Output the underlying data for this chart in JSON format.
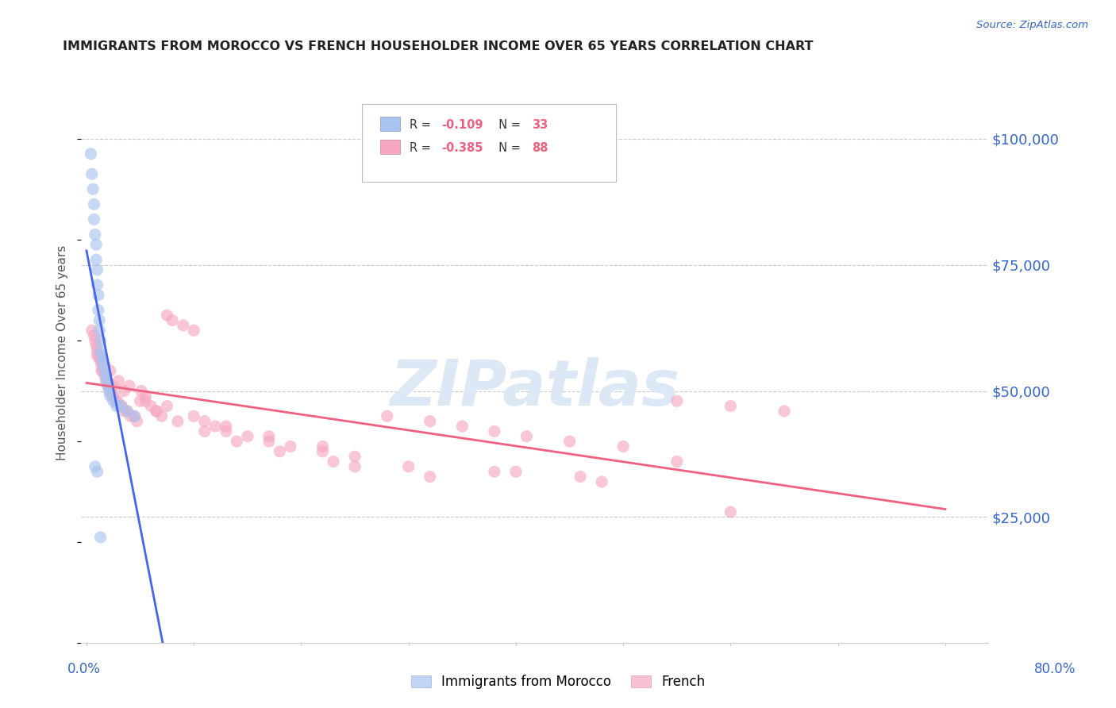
{
  "title": "IMMIGRANTS FROM MOROCCO VS FRENCH HOUSEHOLDER INCOME OVER 65 YEARS CORRELATION CHART",
  "source": "Source: ZipAtlas.com",
  "ylabel": "Householder Income Over 65 years",
  "ytick_values": [
    25000,
    50000,
    75000,
    100000
  ],
  "ylim": [
    0,
    115000
  ],
  "xlim": [
    -0.005,
    0.84
  ],
  "legend_blue_r": "-0.109",
  "legend_blue_n": "33",
  "legend_pink_r": "-0.385",
  "legend_pink_n": "88",
  "blue_color": "#aac4f0",
  "pink_color": "#f7a8c0",
  "line_blue": "#4466ee",
  "line_pink": "#f06080",
  "title_color": "#222222",
  "axis_label_color": "#3366cc",
  "grid_color": "#cccccc",
  "watermark_color": "#dce8f5",
  "blue_scatter_x": [
    0.004,
    0.005,
    0.006,
    0.007,
    0.007,
    0.008,
    0.009,
    0.009,
    0.01,
    0.01,
    0.011,
    0.011,
    0.012,
    0.012,
    0.013,
    0.013,
    0.014,
    0.015,
    0.016,
    0.017,
    0.018,
    0.019,
    0.02,
    0.021,
    0.022,
    0.025,
    0.028,
    0.032,
    0.038,
    0.045,
    0.008,
    0.01,
    0.013
  ],
  "blue_scatter_y": [
    97000,
    93000,
    90000,
    87000,
    84000,
    81000,
    79000,
    76000,
    74000,
    71000,
    69000,
    66000,
    64000,
    62000,
    60000,
    58000,
    57000,
    56000,
    55000,
    54000,
    53000,
    52000,
    51000,
    50000,
    49000,
    48000,
    47000,
    47000,
    46000,
    45000,
    35000,
    34000,
    21000
  ],
  "pink_scatter_x": [
    0.005,
    0.007,
    0.008,
    0.009,
    0.01,
    0.011,
    0.012,
    0.013,
    0.014,
    0.015,
    0.016,
    0.017,
    0.018,
    0.019,
    0.02,
    0.021,
    0.022,
    0.023,
    0.024,
    0.025,
    0.027,
    0.029,
    0.031,
    0.033,
    0.035,
    0.038,
    0.041,
    0.044,
    0.047,
    0.051,
    0.055,
    0.06,
    0.065,
    0.07,
    0.075,
    0.08,
    0.09,
    0.1,
    0.11,
    0.12,
    0.13,
    0.15,
    0.17,
    0.19,
    0.22,
    0.25,
    0.28,
    0.32,
    0.35,
    0.38,
    0.41,
    0.45,
    0.5,
    0.55,
    0.6,
    0.65,
    0.014,
    0.018,
    0.025,
    0.035,
    0.05,
    0.065,
    0.085,
    0.11,
    0.14,
    0.18,
    0.23,
    0.3,
    0.38,
    0.46,
    0.01,
    0.013,
    0.017,
    0.022,
    0.03,
    0.04,
    0.055,
    0.075,
    0.1,
    0.13,
    0.17,
    0.22,
    0.55,
    0.25,
    0.4,
    0.32,
    0.48,
    0.6
  ],
  "pink_scatter_y": [
    62000,
    61000,
    60000,
    59000,
    58000,
    57000,
    57000,
    56000,
    55000,
    54000,
    54000,
    53000,
    52000,
    52000,
    51000,
    51000,
    50000,
    50000,
    49000,
    49000,
    48000,
    48000,
    47000,
    47000,
    46000,
    46000,
    45000,
    45000,
    44000,
    50000,
    48000,
    47000,
    46000,
    45000,
    65000,
    64000,
    63000,
    62000,
    44000,
    43000,
    42000,
    41000,
    40000,
    39000,
    38000,
    37000,
    45000,
    44000,
    43000,
    42000,
    41000,
    40000,
    39000,
    48000,
    47000,
    46000,
    54000,
    53000,
    51000,
    50000,
    48000,
    46000,
    44000,
    42000,
    40000,
    38000,
    36000,
    35000,
    34000,
    33000,
    57000,
    56000,
    55000,
    54000,
    52000,
    51000,
    49000,
    47000,
    45000,
    43000,
    41000,
    39000,
    36000,
    35000,
    34000,
    33000,
    32000,
    26000
  ]
}
